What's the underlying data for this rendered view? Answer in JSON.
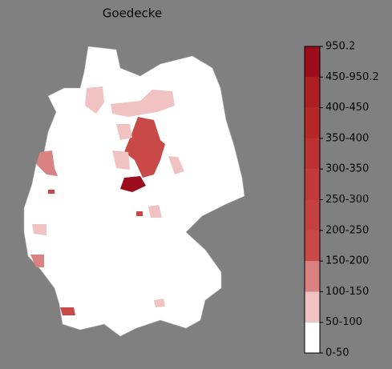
{
  "title": "Goedecke",
  "colorbar": {
    "labels": [
      "0-50",
      "50-100",
      "100-150",
      "150-200",
      "200-250",
      "250-300",
      "300-350",
      "350-400",
      "400-450",
      "450-950.2",
      "950.2"
    ],
    "colors": [
      "#ffffff",
      "#f0c2c2",
      "#da8282",
      "#c94848",
      "#c54040",
      "#c13939",
      "#bc3131",
      "#b62828",
      "#ae1f22",
      "#9c0c1c"
    ]
  }
}
